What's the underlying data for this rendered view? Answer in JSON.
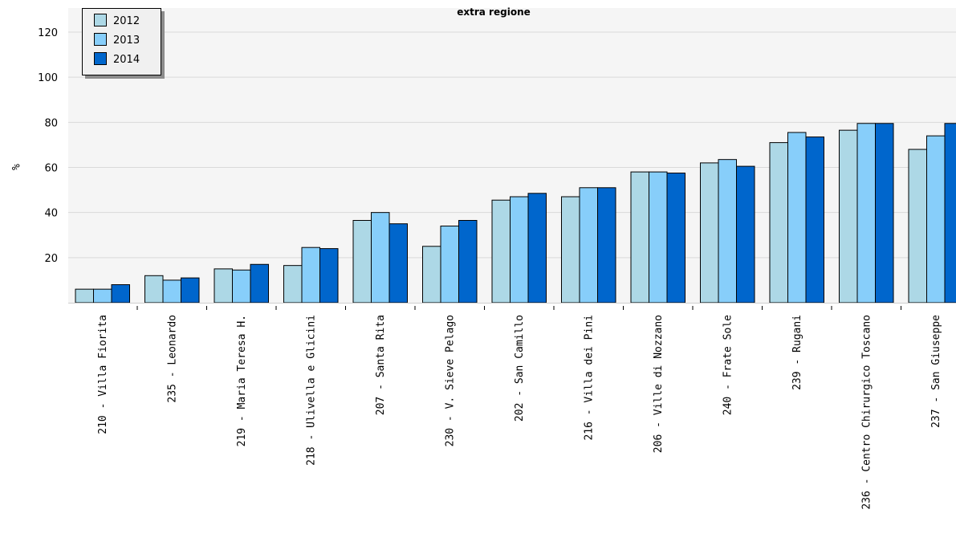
{
  "chart_data": {
    "type": "bar",
    "title": "extra regione",
    "ylabel": "%",
    "xlabel": "",
    "ylim": [
      0,
      120
    ],
    "yticks": [
      20,
      40,
      60,
      80,
      100,
      120
    ],
    "grid": true,
    "legend_position": "top-left",
    "categories": [
      "210 - Villa Fiorita",
      "235 - Leonardo",
      "219 - Maria Teresa H.",
      "218 -  Ulivella e Glicini",
      "207 - Santa Rita",
      "230 - V. Sieve Pelago",
      "202 - San Camillo",
      "216 - Villa dei Pini",
      "206 - Ville di Nozzano",
      "240 - Frate Sole",
      "239 - Rugani",
      "236 - Centro Chirurgico Toscano",
      "237 - San Giuseppe"
    ],
    "series": [
      {
        "name": "2012",
        "color": "#add8e6",
        "values": [
          6,
          12,
          15,
          16.5,
          36.5,
          25,
          45.5,
          47,
          58,
          62,
          71,
          76.5,
          68
        ]
      },
      {
        "name": "2013",
        "color": "#87cefa",
        "values": [
          6,
          10,
          14.5,
          24.5,
          40,
          34,
          47,
          51,
          58,
          63.5,
          75.5,
          79.5,
          74
        ]
      },
      {
        "name": "2014",
        "color": "#0066cc",
        "values": [
          8,
          11,
          17,
          24,
          35,
          36.5,
          48.5,
          51,
          57.5,
          60.5,
          73.5,
          79.5,
          79.5
        ]
      }
    ]
  }
}
